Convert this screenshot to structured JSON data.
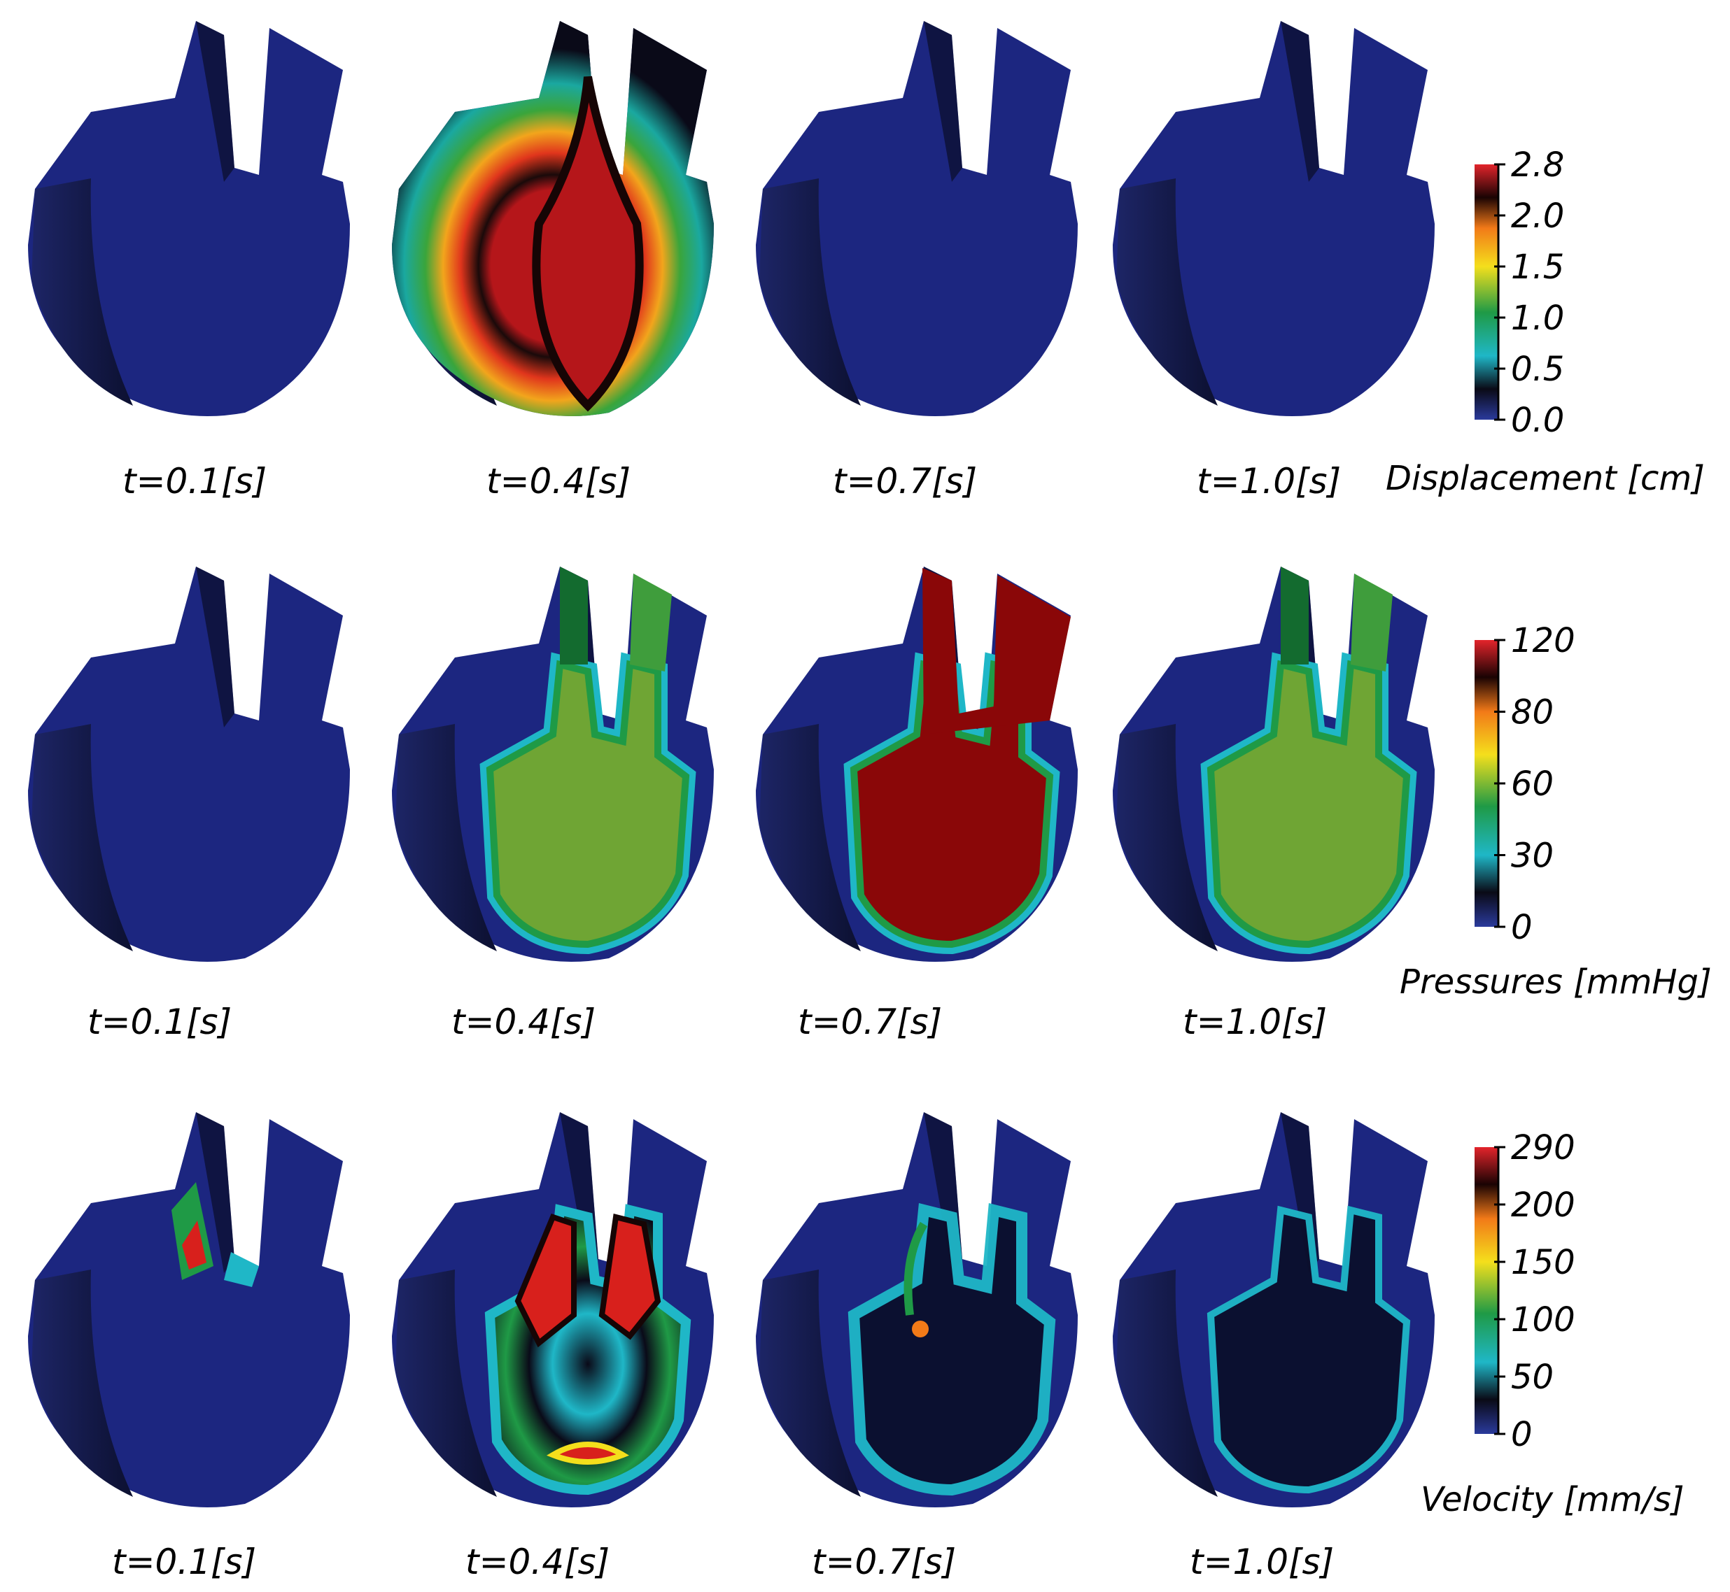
{
  "figure": {
    "rows": [
      {
        "id": "displacement",
        "labels": [
          "t=0.1[s]",
          "t=0.4[s]",
          "t=0.7[s]",
          "t=1.0[s]"
        ],
        "colorbar": {
          "title": "Displacement [cm]",
          "ticks": [
            "2.8",
            "2.0",
            "1.5",
            "1.0",
            "0.5",
            "0.0"
          ]
        },
        "panels": [
          "uniform-low",
          "high-displacement",
          "uniform-low",
          "uniform-low"
        ]
      },
      {
        "id": "pressure",
        "labels": [
          "t=0.1[s]",
          "t=0.4[s]",
          "t=0.7[s]",
          "t=1.0[s]"
        ],
        "colorbar": {
          "title": "Pressures [mmHg]",
          "ticks": [
            "120",
            "80",
            "60",
            "30",
            "0"
          ]
        },
        "panels": [
          "uniform-low",
          "mid-pressure",
          "high-pressure",
          "mid-pressure"
        ]
      },
      {
        "id": "velocity",
        "labels": [
          "t=0.1[s]",
          "t=0.4[s]",
          "t=0.7[s]",
          "t=1.0[s]"
        ],
        "colorbar": {
          "title": "Velocity [mm/s]",
          "ticks": [
            "290",
            "200",
            "150",
            "100",
            "50",
            "0"
          ]
        },
        "panels": [
          "low-velocity",
          "high-velocity",
          "mid-velocity",
          "low-mid-velocity"
        ]
      }
    ],
    "colors": {
      "navy": "#1c2680",
      "navy_dark": "#141a5c",
      "black": "#05060e",
      "cyan": "#1fb7c7",
      "green": "#1f9a46",
      "olive_green": "#6fa534",
      "yellow": "#f4df1c",
      "orange": "#f27a18",
      "red": "#d8201c",
      "dark_red": "#8a0708"
    }
  }
}
